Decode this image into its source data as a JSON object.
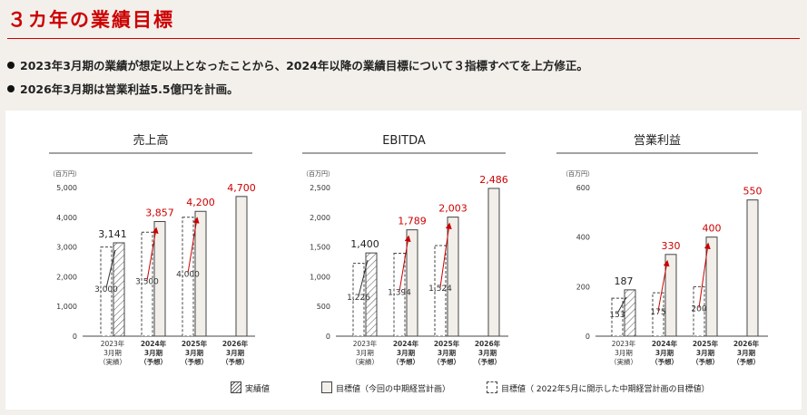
{
  "title": "３カ年の業績目標",
  "bullets": [
    "2023年3月期の業績が想定以上となったことから、2024年以降の業績目標について３指標すべてを上方修正。",
    "2026年3月期は営業利益5.5億円を計画。"
  ],
  "legend": {
    "actual": "実績値",
    "target_current": "目標値（今回の中期経営計画）",
    "target_previous": "目標値（ 2022年5月に開示した中期経営計画の目標値）"
  },
  "colors": {
    "accent": "#cc0000",
    "bar_fill": "#f2efea",
    "bar_stroke": "#444444",
    "bar_label": "#333333"
  },
  "chart_data": [
    {
      "type": "bar",
      "title": "売上高",
      "unit": "（百万円）",
      "ylim": [
        0,
        5000
      ],
      "yticks": [
        0,
        1000,
        2000,
        3000,
        4000,
        5000
      ],
      "ytick_labels": [
        "0",
        "1,000",
        "2,000",
        "3,000",
        "4,000",
        "5,000"
      ],
      "categories": [
        [
          "2023年",
          "3月期",
          "（実績）"
        ],
        [
          "2024年",
          "3月期",
          "（予想）"
        ],
        [
          "2025年",
          "3月期",
          "（予想）"
        ],
        [
          "2026年",
          "3月期",
          "（予想）"
        ]
      ],
      "series": [
        {
          "name": "目標値（ 2022年5月に開示した中期経営計画の目標値）",
          "values": [
            3000,
            3500,
            4000,
            null
          ],
          "labels": [
            "3,000",
            "3,500",
            "4,000",
            null
          ]
        },
        {
          "name": "実績値 / 目標値（今回の中期経営計画）",
          "values": [
            3141,
            3857,
            4200,
            4700
          ],
          "labels": [
            "3,141",
            "3,857",
            "4,200",
            "4,700"
          ]
        }
      ]
    },
    {
      "type": "bar",
      "title": "EBITDA",
      "unit": "（百万円）",
      "ylim": [
        0,
        2500
      ],
      "yticks": [
        0,
        500,
        1000,
        1500,
        2000,
        2500
      ],
      "ytick_labels": [
        "0",
        "500",
        "1,000",
        "1,500",
        "2,000",
        "2,500"
      ],
      "categories": [
        [
          "2023年",
          "3月期",
          "（実績）"
        ],
        [
          "2024年",
          "3月期",
          "（予想）"
        ],
        [
          "2025年",
          "3月期",
          "（予想）"
        ],
        [
          "2026年",
          "3月期",
          "（予想）"
        ]
      ],
      "series": [
        {
          "name": "目標値（ 2022年5月に開示した中期経営計画の目標値）",
          "values": [
            1226,
            1394,
            1524,
            null
          ],
          "labels": [
            "1,226",
            "1,394",
            "1,524",
            null
          ]
        },
        {
          "name": "実績値 / 目標値（今回の中期経営計画）",
          "values": [
            1400,
            1789,
            2003,
            2486
          ],
          "labels": [
            "1,400",
            "1,789",
            "2,003",
            "2,486"
          ]
        }
      ]
    },
    {
      "type": "bar",
      "title": "営業利益",
      "unit": "（百万円）",
      "ylim": [
        0,
        600
      ],
      "yticks": [
        0,
        200,
        400,
        600
      ],
      "ytick_labels": [
        "0",
        "200",
        "400",
        "600"
      ],
      "categories": [
        [
          "2023年",
          "3月期",
          "（実績）"
        ],
        [
          "2024年",
          "3月期",
          "（予想）"
        ],
        [
          "2025年",
          "3月期",
          "（予想）"
        ],
        [
          "2026年",
          "3月期",
          "（予想）"
        ]
      ],
      "series": [
        {
          "name": "目標値（ 2022年5月に開示した中期経営計画の目標値）",
          "values": [
            153,
            175,
            200,
            null
          ],
          "labels": [
            "153",
            "175",
            "200",
            null
          ]
        },
        {
          "name": "実績値 / 目標値（今回の中期経営計画）",
          "values": [
            187,
            330,
            400,
            550
          ],
          "labels": [
            "187",
            "330",
            "400",
            "550"
          ]
        }
      ]
    }
  ]
}
